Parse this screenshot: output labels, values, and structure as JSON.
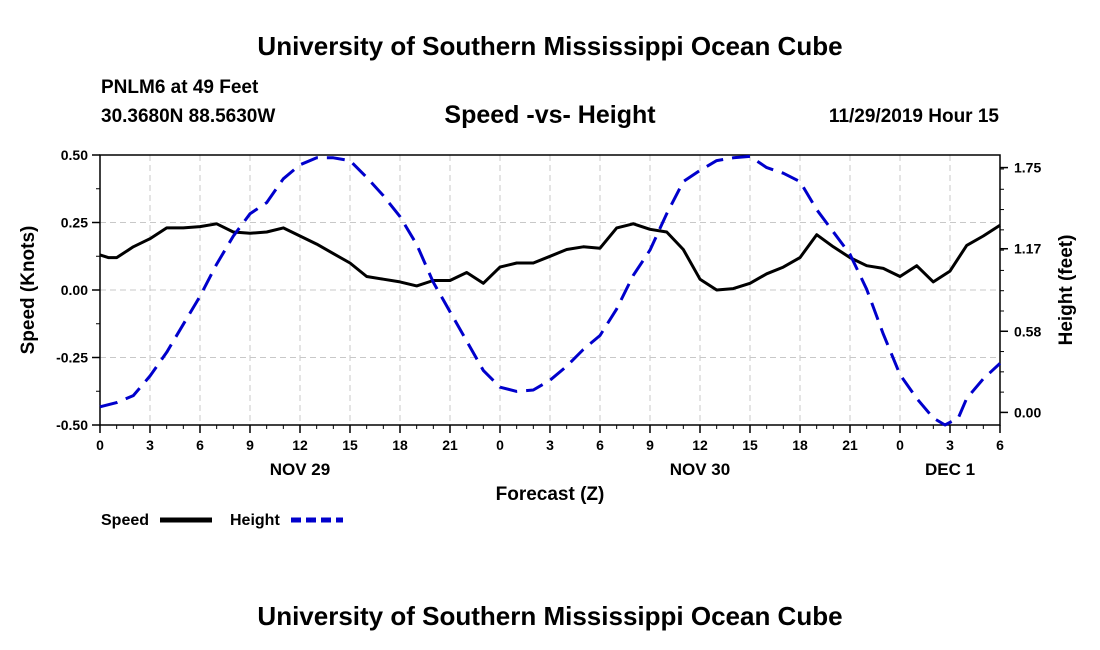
{
  "header": {
    "title": "University of Southern Mississippi Ocean Cube",
    "station": "PNLM6 at 49 Feet",
    "coords": "30.3680N 88.5630W",
    "subtitle": "Speed -vs- Height",
    "datetime": "11/29/2019 Hour 15"
  },
  "footer": {
    "title": "University of Southern Mississippi Ocean Cube"
  },
  "chart_data": {
    "type": "line",
    "title": "Speed -vs- Height",
    "xlabel": "Forecast (Z)",
    "ylabel": "Speed (Knots)",
    "y2label": "Height (feet)",
    "xlim": [
      0,
      54
    ],
    "ylim": [
      -0.5,
      0.5
    ],
    "y2lim": [
      -0.09,
      1.84
    ],
    "grid": true,
    "legend_position": "bottom-left",
    "x_ticks": [
      {
        "x": 0,
        "label": "0"
      },
      {
        "x": 3,
        "label": "3"
      },
      {
        "x": 6,
        "label": "6"
      },
      {
        "x": 9,
        "label": "9"
      },
      {
        "x": 12,
        "label": "12"
      },
      {
        "x": 15,
        "label": "15"
      },
      {
        "x": 18,
        "label": "18"
      },
      {
        "x": 21,
        "label": "21"
      },
      {
        "x": 24,
        "label": "0"
      },
      {
        "x": 27,
        "label": "3"
      },
      {
        "x": 30,
        "label": "6"
      },
      {
        "x": 33,
        "label": "9"
      },
      {
        "x": 36,
        "label": "12"
      },
      {
        "x": 39,
        "label": "15"
      },
      {
        "x": 42,
        "label": "18"
      },
      {
        "x": 45,
        "label": "21"
      },
      {
        "x": 48,
        "label": "0"
      },
      {
        "x": 51,
        "label": "3"
      },
      {
        "x": 54,
        "label": "6"
      }
    ],
    "date_labels": [
      {
        "x": 12,
        "label": "NOV 29"
      },
      {
        "x": 36,
        "label": "NOV 30"
      },
      {
        "x": 51,
        "label": "DEC 1"
      }
    ],
    "y_ticks": [
      {
        "y": 0.5,
        "label": "0.50"
      },
      {
        "y": 0.25,
        "label": "0.25"
      },
      {
        "y": 0.0,
        "label": "0.00"
      },
      {
        "y": -0.25,
        "label": "-0.25"
      },
      {
        "y": -0.5,
        "label": "-0.50"
      }
    ],
    "y2_ticks": [
      {
        "y": 1.75,
        "label": "1.75"
      },
      {
        "y": 1.17,
        "label": "1.17"
      },
      {
        "y": 0.58,
        "label": "0.58"
      },
      {
        "y": 0.0,
        "label": "0.00"
      }
    ],
    "series": [
      {
        "name": "Speed",
        "axis": "left",
        "color": "#000000",
        "dash": "solid",
        "x": [
          0,
          0.5,
          1,
          2,
          3,
          4,
          5,
          6,
          7,
          8,
          9,
          10,
          11,
          12,
          13,
          14,
          15,
          16,
          17,
          18,
          19,
          20,
          21,
          22,
          23,
          24,
          25,
          26,
          27,
          28,
          29,
          30,
          31,
          32,
          33,
          34,
          35,
          36,
          37,
          38,
          39,
          40,
          41,
          42,
          43,
          44,
          45,
          46,
          47,
          48,
          49,
          50,
          51,
          52,
          53,
          54
        ],
        "values": [
          0.13,
          0.12,
          0.12,
          0.16,
          0.19,
          0.23,
          0.23,
          0.235,
          0.245,
          0.215,
          0.21,
          0.215,
          0.23,
          0.2,
          0.17,
          0.135,
          0.1,
          0.05,
          0.04,
          0.03,
          0.015,
          0.035,
          0.035,
          0.065,
          0.025,
          0.085,
          0.1,
          0.1,
          0.125,
          0.15,
          0.16,
          0.155,
          0.23,
          0.245,
          0.225,
          0.215,
          0.15,
          0.04,
          0.0,
          0.005,
          0.025,
          0.06,
          0.085,
          0.12,
          0.205,
          0.16,
          0.12,
          0.09,
          0.08,
          0.05,
          0.09,
          0.03,
          0.07,
          0.165,
          0.2,
          0.24
        ]
      },
      {
        "name": "Height",
        "axis": "right",
        "color": "#0000cc",
        "dash": "dashed",
        "x": [
          0,
          1,
          2,
          3,
          4,
          5,
          6,
          7,
          8,
          9,
          10,
          11,
          12,
          13,
          14,
          15,
          16,
          17,
          18,
          19,
          20,
          21,
          22,
          23,
          24,
          25,
          26,
          27,
          28,
          29,
          30,
          31,
          32,
          33,
          34,
          35,
          36,
          37,
          38,
          39,
          40,
          41,
          42,
          43,
          44,
          45,
          46,
          47,
          48,
          49,
          50,
          50.7,
          51.5,
          52,
          53,
          54
        ],
        "values": [
          0.04,
          0.07,
          0.12,
          0.26,
          0.43,
          0.63,
          0.83,
          1.06,
          1.26,
          1.42,
          1.5,
          1.67,
          1.77,
          1.82,
          1.82,
          1.8,
          1.68,
          1.55,
          1.4,
          1.2,
          0.93,
          0.72,
          0.51,
          0.3,
          0.18,
          0.15,
          0.16,
          0.23,
          0.33,
          0.45,
          0.55,
          0.74,
          0.98,
          1.16,
          1.42,
          1.65,
          1.73,
          1.8,
          1.82,
          1.83,
          1.75,
          1.71,
          1.65,
          1.45,
          1.29,
          1.13,
          0.88,
          0.56,
          0.27,
          0.1,
          -0.04,
          -0.09,
          -0.04,
          0.1,
          0.24,
          0.35
        ]
      }
    ]
  }
}
